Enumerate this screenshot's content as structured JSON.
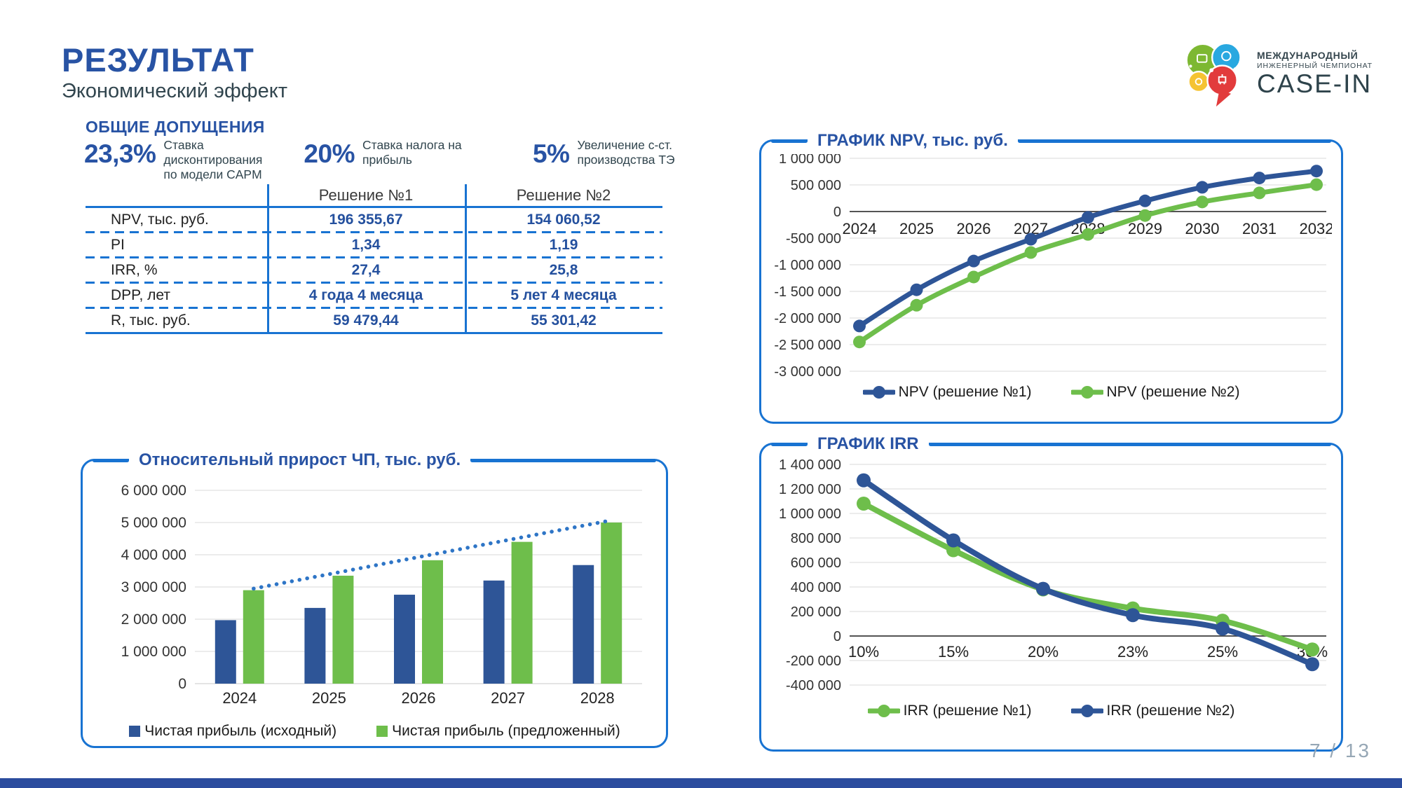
{
  "header": {
    "title": "РЕЗУЛЬТАТ",
    "subtitle": "Экономический эффект"
  },
  "logo": {
    "line1": "МЕЖДУНАРОДНЫЙ",
    "line2": "ИНЖЕНЕРНЫЙ ЧЕМПИОНАТ",
    "line3": "CASE-IN"
  },
  "assumptions": {
    "heading": "ОБЩИЕ ДОПУЩЕНИЯ",
    "items": [
      {
        "value": "23,3%",
        "label": "Ставка дисконтирования по модели CAPM"
      },
      {
        "value": "20%",
        "label": "Ставка налога на прибыль"
      },
      {
        "value": "5%",
        "label": "Увеличение с-ст. производства ТЭ"
      }
    ]
  },
  "table": {
    "col_headers": [
      "Решение №1",
      "Решение №2"
    ],
    "rows": [
      {
        "label": "NPV, тыс. руб.",
        "v1": "196 355,67",
        "v2": "154 060,52"
      },
      {
        "label": "PI",
        "v1": "1,34",
        "v2": "1,19"
      },
      {
        "label": "IRR, %",
        "v1": "27,4",
        "v2": "25,8"
      },
      {
        "label": "DPP, лет",
        "v1": "4 года 4 месяца",
        "v2": "5 лет 4 месяца"
      },
      {
        "label": "R, тыс. руб.",
        "v1": "59 479,44",
        "v2": "55 301,42"
      }
    ]
  },
  "chart_data": [
    {
      "id": "profit",
      "type": "bar",
      "title": "Относительный прирост ЧП, тыс. руб.",
      "categories": [
        "2024",
        "2025",
        "2026",
        "2027",
        "2028"
      ],
      "series": [
        {
          "name": "Чистая прибыль (исходный)",
          "color": "#2E5597",
          "values": [
            1970000,
            2350000,
            2760000,
            3200000,
            3680000
          ]
        },
        {
          "name": "Чистая прибыль (предложенный)",
          "color": "#6EBE4B",
          "values": [
            2900000,
            3350000,
            3830000,
            4400000,
            5000000
          ]
        }
      ],
      "trendline": {
        "color": "#2E75C6",
        "style": "dotted",
        "values": [
          2950000,
          3480000,
          4010000,
          4540000,
          5070000
        ]
      },
      "y_ticks": [
        {
          "label": "6 000 000",
          "value": 6000000
        },
        {
          "label": "5 000 000",
          "value": 5000000
        },
        {
          "label": "4 000 000",
          "value": 4000000
        },
        {
          "label": "3 000 000",
          "value": 3000000
        },
        {
          "label": "2 000 000",
          "value": 2000000
        },
        {
          "label": "1 000 000",
          "value": 1000000
        },
        {
          "label": "0",
          "value": 0
        }
      ],
      "ylim": [
        0,
        6000000
      ],
      "legend_marker": "square",
      "legend_position": "bottom",
      "grid": true
    },
    {
      "id": "npv",
      "type": "line",
      "title": "ГРАФИК NPV, тыс. руб.",
      "categories": [
        "2024",
        "2025",
        "2026",
        "2027",
        "2028",
        "2029",
        "2030",
        "2031",
        "2032"
      ],
      "series": [
        {
          "name": "NPV (решение №1)",
          "color": "#2E5597",
          "values": [
            -2150000,
            -1470000,
            -930000,
            -520000,
            -110000,
            200000,
            455000,
            630000,
            760000
          ]
        },
        {
          "name": "NPV (решение №2)",
          "color": "#6EBE4B",
          "values": [
            -2450000,
            -1760000,
            -1230000,
            -770000,
            -430000,
            -75000,
            180000,
            350000,
            505000
          ]
        }
      ],
      "draw_order": [
        1,
        0
      ],
      "y_ticks": [
        {
          "label": "1 000 000",
          "value": 1000000
        },
        {
          "label": "500 000",
          "value": 500000
        },
        {
          "label": "0",
          "value": 0
        },
        {
          "label": "-500 000",
          "value": -500000
        },
        {
          "label": "-1 000 000",
          "value": -1000000
        },
        {
          "label": "-1 500 000",
          "value": -1500000
        },
        {
          "label": "-2 000 000",
          "value": -2000000
        },
        {
          "label": "-2 500 000",
          "value": -2500000
        },
        {
          "label": "-3 000 000",
          "value": -3000000
        }
      ],
      "ylim": [
        -3000000,
        1000000
      ],
      "legend_marker": "line",
      "legend_position": "bottom",
      "grid": true
    },
    {
      "id": "irr",
      "type": "line",
      "title": "ГРАФИК IRR",
      "categories": [
        "10%",
        "15%",
        "20%",
        "23%",
        "25%",
        "30%"
      ],
      "series": [
        {
          "name": "IRR (решение №1)",
          "color": "#6EBE4B",
          "values": [
            1080000,
            700000,
            380000,
            225000,
            125000,
            -110000
          ]
        },
        {
          "name": "IRR (решение №2)",
          "color": "#2E5597",
          "values": [
            1270000,
            780000,
            385000,
            170000,
            60000,
            -230000
          ]
        }
      ],
      "draw_order": [
        0,
        1
      ],
      "y_ticks": [
        {
          "label": "1 400 000",
          "value": 1400000
        },
        {
          "label": "1 200 000",
          "value": 1200000
        },
        {
          "label": "1 000 000",
          "value": 1000000
        },
        {
          "label": "800 000",
          "value": 800000
        },
        {
          "label": "600 000",
          "value": 600000
        },
        {
          "label": "400 000",
          "value": 400000
        },
        {
          "label": "200 000",
          "value": 200000
        },
        {
          "label": "0",
          "value": 0
        },
        {
          "label": "-200 000",
          "value": -200000
        },
        {
          "label": "-400 000",
          "value": -400000
        }
      ],
      "ylim": [
        -400000,
        1400000
      ],
      "legend_marker": "line",
      "legend_position": "bottom",
      "grid": true
    }
  ],
  "footer": {
    "page": "7 / 13"
  },
  "colors": {
    "accent": "#1873D2",
    "title_blue": "#2853A4",
    "value_blue": "#24509E",
    "dark_blue": "#2E5597",
    "green": "#6EBE4B",
    "slate": "#31454E",
    "footer_bar": "#2B4C9E",
    "page_number": "#96A7B5",
    "gridline": "#D9D9D9",
    "logo_green": "#7DB832",
    "logo_blue": "#29A8E0",
    "logo_yellow": "#F5C332",
    "logo_red": "#E23B3C"
  }
}
